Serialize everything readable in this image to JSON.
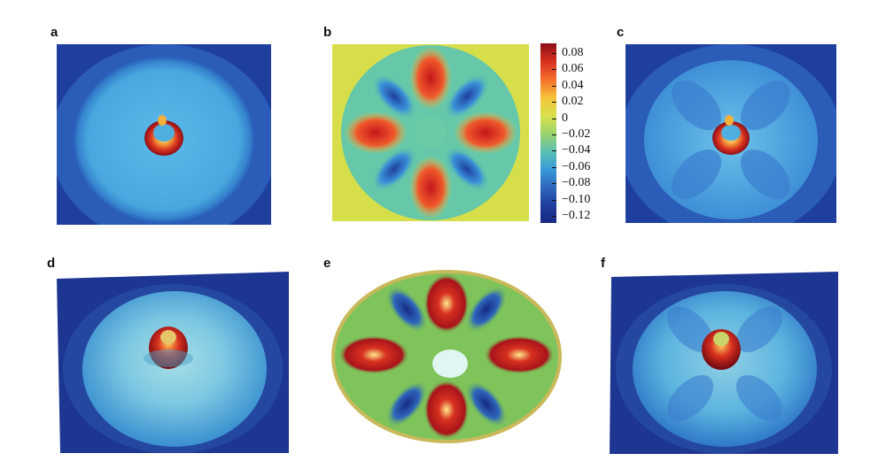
{
  "panels": [
    {
      "label": "a"
    },
    {
      "label": "b"
    },
    {
      "label": "c"
    },
    {
      "label": "d"
    },
    {
      "label": "e"
    },
    {
      "label": "f"
    }
  ],
  "colorbar": {
    "ticks": [
      "0.08",
      "0.06",
      "0.04",
      "0.02",
      "0",
      "−0.02",
      "−0.04",
      "−0.06",
      "−0.08",
      "−0.10",
      "−0.12"
    ],
    "colors": [
      "#8b0f17",
      "#d7301f",
      "#f46d2b",
      "#f6c23a",
      "#d9e04b",
      "#9ed46b",
      "#5cc1b0",
      "#3a9bd8",
      "#2f67bd",
      "#1f3e9e",
      "#162a82"
    ]
  }
}
